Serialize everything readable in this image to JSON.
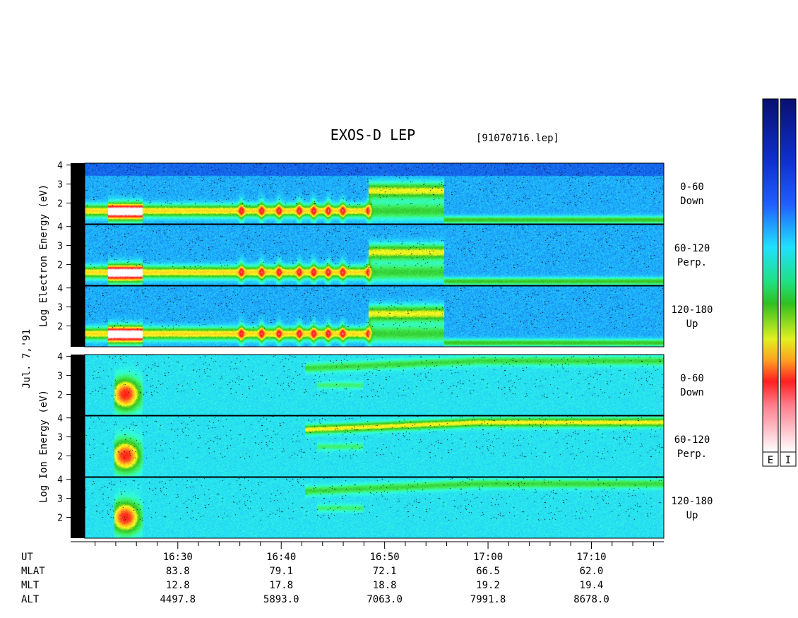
{
  "chart_data": {
    "type": "heatmap",
    "title": "EXOS-D LEP",
    "file_label": "[91070716.lep]",
    "date_label": "Jul. 7,'91",
    "species_groups": [
      {
        "species": "Electron",
        "ylabel": "Log Electron Energy (eV)",
        "panels": [
          {
            "pitch_angle": "0-60",
            "direction": "Down"
          },
          {
            "pitch_angle": "60-120",
            "direction": "Perp."
          },
          {
            "pitch_angle": "120-180",
            "direction": "Up"
          }
        ]
      },
      {
        "species": "Ion",
        "ylabel": "Log Ion Energy (eV)",
        "panels": [
          {
            "pitch_angle": "0-60",
            "direction": "Down"
          },
          {
            "pitch_angle": "60-120",
            "direction": "Perp."
          },
          {
            "pitch_angle": "120-180",
            "direction": "Up"
          }
        ]
      }
    ],
    "yticks": [
      "4",
      "3",
      "2"
    ],
    "x_start": "16:21:00",
    "x_end": "17:17:00",
    "x_tick_labels": [
      "16:30",
      "16:40",
      "16:50",
      "17:00",
      "17:10"
    ],
    "ephemeris": {
      "rows": [
        {
          "label": "UT",
          "values": [
            "16:30",
            "16:40",
            "16:50",
            "17:00",
            "17:10"
          ]
        },
        {
          "label": "MLAT",
          "values": [
            "83.8",
            "79.1",
            "72.1",
            "66.5",
            "62.0"
          ]
        },
        {
          "label": "MLT",
          "values": [
            "12.8",
            "17.8",
            "18.8",
            "19.2",
            "19.4"
          ]
        },
        {
          "label": "ALT",
          "values": [
            "4497.8",
            "5893.0",
            "7063.0",
            "7991.8",
            "8678.0"
          ]
        }
      ]
    },
    "colorbars": [
      {
        "label": "E"
      },
      {
        "label": "I"
      }
    ],
    "colormap": [
      "#0a1078",
      "#1040e0",
      "#20c0ff",
      "#30ffe0",
      "#40f060",
      "#30c020",
      "#ffff20",
      "#ffb020",
      "#ff4020",
      "#ff1010",
      "#ffc0c8",
      "#ffffff"
    ]
  }
}
